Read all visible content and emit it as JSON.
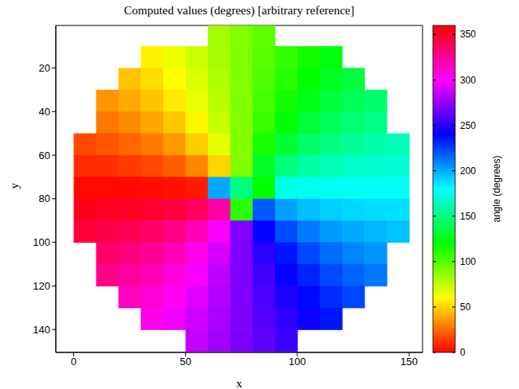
{
  "chart_data": {
    "type": "heatmap",
    "title": "Computed values (degrees) [arbitrary reference]",
    "x_label": "x",
    "y_label": "y",
    "xlim": [
      -8,
      156
    ],
    "ylim": [
      0.5,
      150.5
    ],
    "xticks": [
      0,
      50,
      100,
      150
    ],
    "yticks": [
      20,
      40,
      60,
      80,
      100,
      120,
      140
    ],
    "x": [
      5,
      15,
      25,
      35,
      45,
      55,
      65,
      75,
      85,
      95,
      105,
      115,
      125,
      135,
      145
    ],
    "y": [
      5,
      15,
      25,
      35,
      45,
      55,
      65,
      75,
      85,
      95,
      105,
      115,
      125,
      135,
      145
    ],
    "cells": [
      [
        null,
        null,
        null,
        null,
        null,
        null,
        82,
        90,
        98,
        null,
        null,
        null,
        null,
        null,
        null
      ],
      [
        null,
        null,
        null,
        57,
        64,
        72,
        81,
        90,
        99,
        108,
        116,
        123,
        null,
        null,
        null
      ],
      [
        null,
        null,
        46,
        52,
        60,
        69,
        79,
        90,
        101,
        111,
        120,
        128,
        134,
        null,
        null
      ],
      [
        null,
        35,
        40,
        46,
        55,
        65,
        77,
        90,
        103,
        115,
        125,
        134,
        140,
        145,
        null
      ],
      [
        null,
        28,
        33,
        39,
        47,
        58,
        73,
        90,
        107,
        122,
        133,
        141,
        147,
        152,
        null
      ],
      [
        17,
        20,
        24,
        29,
        36,
        48,
        66,
        90,
        114,
        132,
        144,
        151,
        156,
        160,
        163
      ],
      [
        10,
        11,
        14,
        17,
        22,
        31,
        50,
        90,
        130,
        149,
        158,
        163,
        167,
        169,
        170
      ],
      [
        2,
        2,
        2,
        3,
        4,
        6,
        200,
        150,
        120,
        174,
        176,
        177,
        178,
        178,
        178
      ],
      [
        354,
        352,
        351,
        349,
        345,
        338,
        321,
        110,
        219,
        202,
        195,
        191,
        189,
        188,
        187
      ],
      [
        346,
        343,
        340,
        336,
        329,
        318,
        299,
        270,
        241,
        222,
        211,
        204,
        200,
        197,
        194
      ],
      [
        null,
        335,
        331,
        325,
        317,
        305,
        290,
        270,
        250,
        235,
        223,
        215,
        209,
        205,
        null
      ],
      [
        null,
        328,
        323,
        317,
        308,
        298,
        285,
        270,
        255,
        242,
        232,
        223,
        217,
        212,
        null
      ],
      [
        null,
        null,
        316,
        310,
        302,
        293,
        282,
        270,
        258,
        247,
        238,
        230,
        224,
        null,
        null
      ],
      [
        null,
        null,
        null,
        305,
        297,
        289,
        280,
        270,
        260,
        251,
        243,
        235,
        null,
        null,
        null
      ],
      [
        null,
        null,
        null,
        null,
        null,
        286,
        278,
        270,
        262,
        254,
        null,
        null,
        null,
        null,
        null
      ]
    ],
    "colorbar": {
      "label": "angle (degrees)",
      "range": [
        0,
        360
      ],
      "ticks": [
        0,
        50,
        100,
        150,
        200,
        250,
        300,
        350
      ]
    }
  }
}
